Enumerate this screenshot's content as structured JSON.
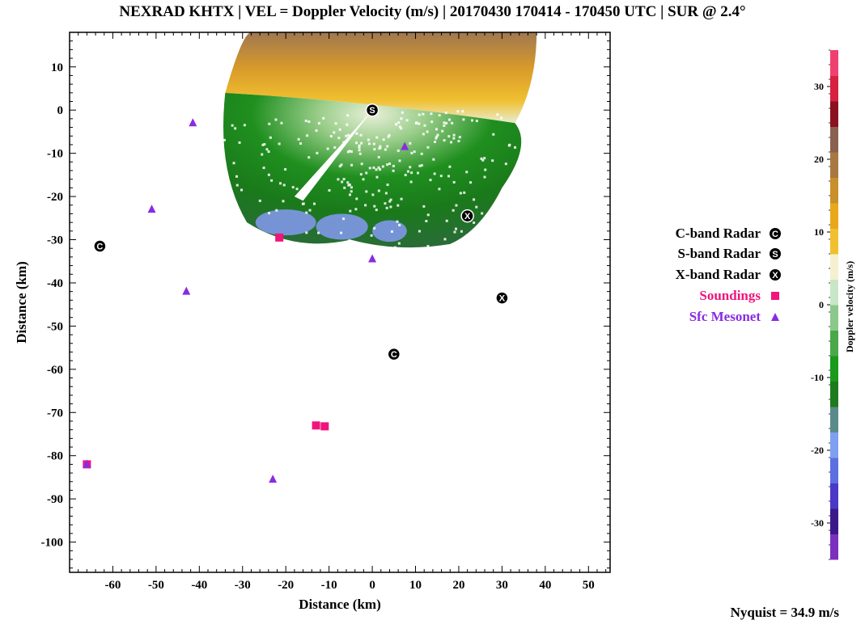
{
  "title": "NEXRAD KHTX | VEL = Doppler Velocity (m/s) | 20170430 170414 - 170450 UTC | SUR @ 2.4°",
  "nyquist": "Nyquist = 34.9 m/s",
  "chart_data": {
    "type": "scatter",
    "title": "NEXRAD KHTX | VEL = Doppler Velocity (m/s) | 20170430 170414 - 170450 UTC | SUR @ 2.4°",
    "xlabel": "Distance (km)",
    "ylabel": "Distance (km)",
    "xlim": [
      -70,
      55
    ],
    "ylim": [
      -107,
      18
    ],
    "xticks": [
      -60,
      -50,
      -40,
      -30,
      -20,
      -10,
      0,
      10,
      20,
      30,
      40,
      50
    ],
    "yticks": [
      10,
      0,
      -10,
      -20,
      -30,
      -40,
      -50,
      -60,
      -70,
      -80,
      -90,
      -100
    ],
    "legend_position": "right",
    "series": [
      {
        "name": "C-band Radar",
        "marker": "C",
        "color": "#000000",
        "points": [
          [
            -63,
            -31.5
          ],
          [
            5,
            -56.5
          ]
        ]
      },
      {
        "name": "S-band Radar",
        "marker": "S",
        "color": "#000000",
        "points": [
          [
            0,
            0
          ]
        ]
      },
      {
        "name": "X-band Radar",
        "marker": "X",
        "color": "#000000",
        "points": [
          [
            22,
            -24.5
          ],
          [
            30,
            -43.5
          ]
        ]
      },
      {
        "name": "Soundings",
        "marker": "square",
        "color": "#f0157a",
        "points": [
          [
            -21.5,
            -29.5
          ],
          [
            -13,
            -73
          ],
          [
            -11,
            -73.2
          ],
          [
            -66,
            -82
          ]
        ]
      },
      {
        "name": "Sfc Mesonet",
        "marker": "triangle",
        "color": "#8a2be2",
        "points": [
          [
            -41.5,
            -3
          ],
          [
            -51,
            -23
          ],
          [
            -43,
            -42
          ],
          [
            7.5,
            -8.5
          ],
          [
            0,
            -34.5
          ],
          [
            -23,
            -85.5
          ],
          [
            -66,
            -82
          ]
        ]
      }
    ],
    "colorbar": {
      "label": "Doppler velocity (m/s)",
      "range": [
        -35,
        35
      ],
      "ticks": [
        30,
        20,
        10,
        0,
        -10,
        -20,
        -30
      ],
      "colors_low_to_high": [
        "#7b2fbf",
        "#3a1a8a",
        "#4a38c8",
        "#5b6fe0",
        "#7fa0f0",
        "#5b8a8a",
        "#1e7a1e",
        "#1a9a1a",
        "#4aa84a",
        "#8bc88b",
        "#c8e6c8",
        "#f5f0d0",
        "#f0c030",
        "#e8a81a",
        "#c8902a",
        "#a87840",
        "#8a6050",
        "#8b1020",
        "#d82040",
        "#f04070"
      ]
    }
  }
}
